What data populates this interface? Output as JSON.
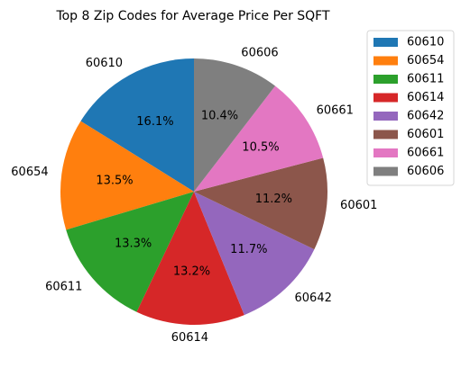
{
  "chart_data": {
    "type": "pie",
    "title": "Top 8 Zip Codes for Average Price Per SQFT",
    "start_angle_deg": 90,
    "direction": "counterclockwise",
    "legend_position": "upper-right",
    "slices": [
      {
        "label": "60610",
        "percent_label": "16.1%",
        "value": 16.1,
        "color": "#1f77b4"
      },
      {
        "label": "60654",
        "percent_label": "13.5%",
        "value": 13.5,
        "color": "#ff7f0e"
      },
      {
        "label": "60611",
        "percent_label": "13.3%",
        "value": 13.3,
        "color": "#2ca02c"
      },
      {
        "label": "60614",
        "percent_label": "13.2%",
        "value": 13.2,
        "color": "#d62728"
      },
      {
        "label": "60642",
        "percent_label": "11.7%",
        "value": 11.7,
        "color": "#9467bd"
      },
      {
        "label": "60601",
        "percent_label": "11.2%",
        "value": 11.2,
        "color": "#8c564b"
      },
      {
        "label": "60661",
        "percent_label": "10.5%",
        "value": 10.5,
        "color": "#e377c2"
      },
      {
        "label": "60606",
        "percent_label": "10.4%",
        "value": 10.4,
        "color": "#7f7f7f"
      }
    ]
  }
}
